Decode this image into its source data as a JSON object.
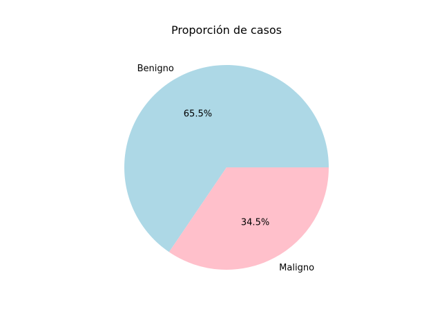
{
  "chart_data": {
    "type": "pie",
    "title": "Proporción de casos",
    "slices": [
      {
        "label": "Benigno",
        "value": 65.5,
        "percent_label": "65.5%",
        "color": "#ADD8E6"
      },
      {
        "label": "Maligno",
        "value": 34.5,
        "percent_label": "34.5%",
        "color": "#FFC0CB"
      }
    ],
    "start_angle_deg": 0,
    "direction": "counterclockwise"
  }
}
